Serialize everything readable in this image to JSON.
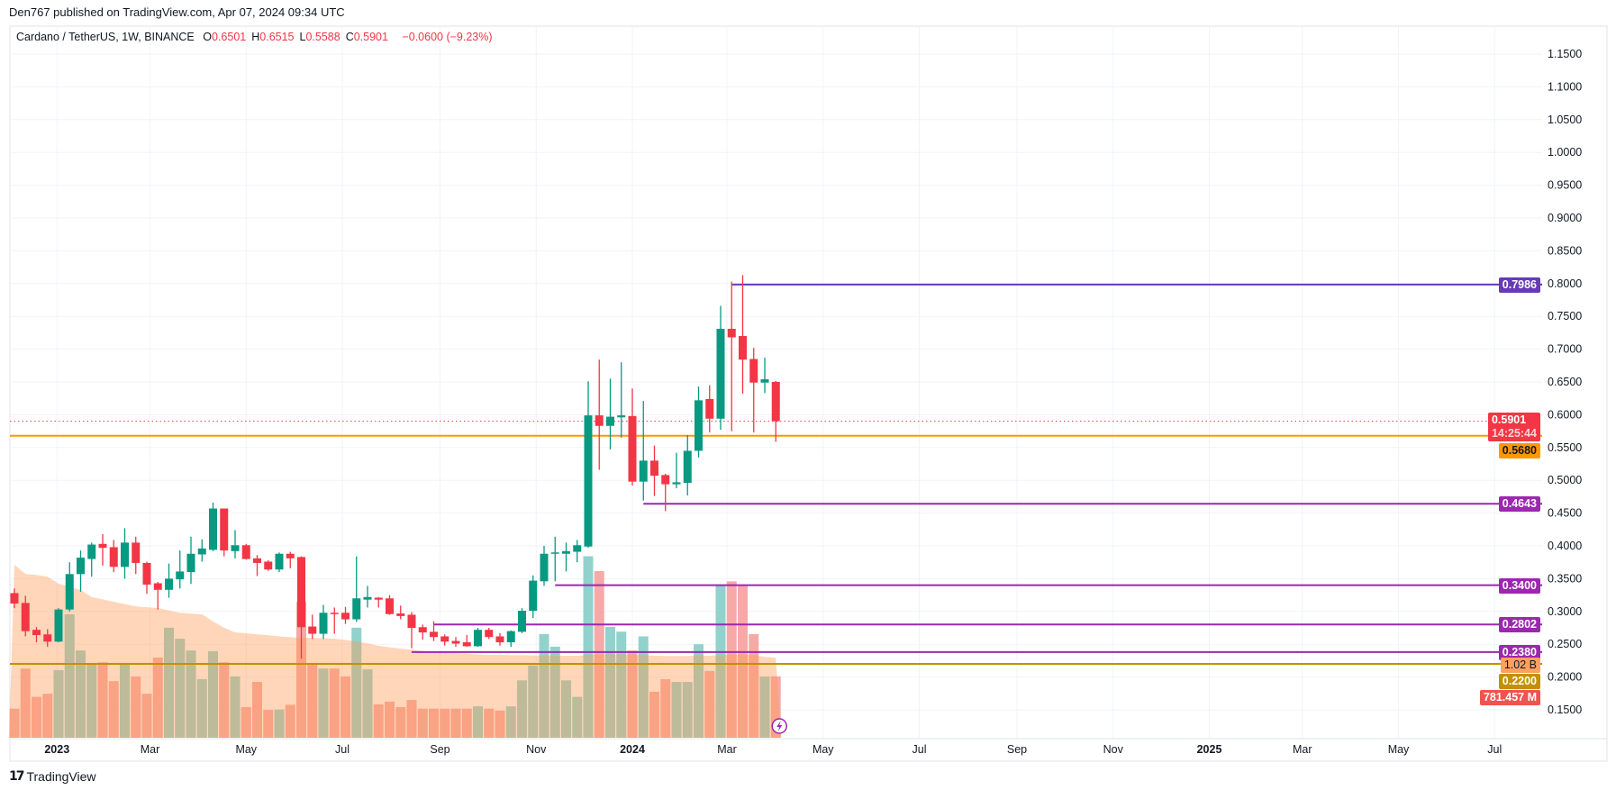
{
  "header": {
    "published": "Den767 published on TradingView.com, Apr 07, 2024 09:34 UTC",
    "symbol": "Cardano / TetherUS, 1W, BINANCE",
    "ohlc": [
      {
        "k": "O",
        "v": "0.6501"
      },
      {
        "k": "H",
        "v": "0.6515"
      },
      {
        "k": "L",
        "v": "0.5588"
      },
      {
        "k": "C",
        "v": "0.5901"
      }
    ],
    "change": "−0.0600 (−9.23%)"
  },
  "footer": {
    "logo_text": "TradingView"
  },
  "colors": {
    "up": "#089981",
    "down": "#f23645",
    "vol_up": "#92d2cc",
    "vol_down": "#f7a9a7",
    "vol_ma": "#ff9850",
    "grid": "#f0f3fa"
  },
  "chart_data": {
    "type": "candlestick",
    "interval": "1W",
    "ylim": [
      0.15,
      1.15
    ],
    "grid": true,
    "yticks": [
      "0.1500",
      "0.2000",
      "0.2500",
      "0.3000",
      "0.3500",
      "0.4000",
      "0.4500",
      "0.5000",
      "0.5500",
      "0.6000",
      "0.6500",
      "0.7000",
      "0.7500",
      "0.8000",
      "0.8500",
      "0.9000",
      "0.9500",
      "1.0000",
      "1.0500",
      "1.1000",
      "1.1500"
    ],
    "time_ticks": [
      {
        "label": "2023",
        "date": "2023-01-01",
        "bold": true
      },
      {
        "label": "Mar",
        "date": "2023-03-01"
      },
      {
        "label": "May",
        "date": "2023-05-01"
      },
      {
        "label": "Jul",
        "date": "2023-07-01"
      },
      {
        "label": "Sep",
        "date": "2023-09-01"
      },
      {
        "label": "Nov",
        "date": "2023-11-01"
      },
      {
        "label": "2024",
        "date": "2024-01-01",
        "bold": true
      },
      {
        "label": "Mar",
        "date": "2024-03-01"
      },
      {
        "label": "May",
        "date": "2024-05-01"
      },
      {
        "label": "Jul",
        "date": "2024-07-01"
      },
      {
        "label": "Sep",
        "date": "2024-09-01"
      },
      {
        "label": "Nov",
        "date": "2024-11-01"
      },
      {
        "label": "2025",
        "date": "2025-01-01",
        "bold": true
      },
      {
        "label": "Mar",
        "date": "2025-03-01"
      },
      {
        "label": "May",
        "date": "2025-05-01"
      },
      {
        "label": "Jul",
        "date": "2025-07-01"
      }
    ],
    "candle_fields": [
      "date",
      "open",
      "high",
      "low",
      "close",
      "volume_millions"
    ],
    "candles": [
      [
        "2022-12-05",
        0.328,
        0.335,
        0.305,
        0.312,
        370
      ],
      [
        "2022-12-12",
        0.313,
        0.324,
        0.262,
        0.27,
        880
      ],
      [
        "2022-12-19",
        0.272,
        0.276,
        0.253,
        0.264,
        520
      ],
      [
        "2022-12-26",
        0.265,
        0.273,
        0.246,
        0.254,
        560
      ],
      [
        "2023-01-02",
        0.254,
        0.305,
        0.253,
        0.303,
        860
      ],
      [
        "2023-01-09",
        0.303,
        0.375,
        0.3,
        0.357,
        1570
      ],
      [
        "2023-01-16",
        0.357,
        0.393,
        0.33,
        0.382,
        1110
      ],
      [
        "2023-01-23",
        0.38,
        0.405,
        0.353,
        0.402,
        930
      ],
      [
        "2023-01-30",
        0.403,
        0.418,
        0.37,
        0.397,
        960
      ],
      [
        "2023-02-06",
        0.398,
        0.409,
        0.36,
        0.368,
        720
      ],
      [
        "2023-02-13",
        0.368,
        0.427,
        0.35,
        0.405,
        950
      ],
      [
        "2023-02-20",
        0.405,
        0.414,
        0.357,
        0.374,
        780
      ],
      [
        "2023-02-27",
        0.374,
        0.376,
        0.327,
        0.341,
        560
      ],
      [
        "2023-03-06",
        0.343,
        0.345,
        0.303,
        0.333,
        1020
      ],
      [
        "2023-03-13",
        0.333,
        0.373,
        0.321,
        0.35,
        1400
      ],
      [
        "2023-03-20",
        0.349,
        0.393,
        0.335,
        0.361,
        1260
      ],
      [
        "2023-03-27",
        0.36,
        0.414,
        0.342,
        0.388,
        1110
      ],
      [
        "2023-04-03",
        0.387,
        0.41,
        0.376,
        0.396,
        745
      ],
      [
        "2023-04-10",
        0.394,
        0.466,
        0.392,
        0.457,
        1100
      ],
      [
        "2023-04-17",
        0.457,
        0.457,
        0.384,
        0.393,
        960
      ],
      [
        "2023-04-24",
        0.392,
        0.424,
        0.381,
        0.401,
        780
      ],
      [
        "2023-05-01",
        0.401,
        0.403,
        0.379,
        0.38,
        390
      ],
      [
        "2023-05-08",
        0.381,
        0.386,
        0.354,
        0.374,
        710
      ],
      [
        "2023-05-15",
        0.376,
        0.378,
        0.362,
        0.364,
        355
      ],
      [
        "2023-05-22",
        0.364,
        0.39,
        0.36,
        0.388,
        360
      ],
      [
        "2023-05-29",
        0.388,
        0.391,
        0.366,
        0.381,
        420
      ],
      [
        "2023-06-05",
        0.383,
        0.384,
        0.228,
        0.276,
        1730
      ],
      [
        "2023-06-12",
        0.277,
        0.295,
        0.258,
        0.266,
        940
      ],
      [
        "2023-06-19",
        0.266,
        0.31,
        0.258,
        0.298,
        880
      ],
      [
        "2023-06-26",
        0.298,
        0.306,
        0.266,
        0.297,
        880
      ],
      [
        "2023-07-03",
        0.298,
        0.307,
        0.281,
        0.288,
        780
      ],
      [
        "2023-07-10",
        0.288,
        0.384,
        0.284,
        0.32,
        1400
      ],
      [
        "2023-07-17",
        0.318,
        0.339,
        0.306,
        0.322,
        870
      ],
      [
        "2023-07-24",
        0.321,
        0.322,
        0.306,
        0.318,
        425
      ],
      [
        "2023-07-31",
        0.32,
        0.325,
        0.295,
        0.296,
        460
      ],
      [
        "2023-08-07",
        0.297,
        0.309,
        0.288,
        0.293,
        390
      ],
      [
        "2023-08-14",
        0.295,
        0.299,
        0.244,
        0.275,
        480
      ],
      [
        "2023-08-21",
        0.276,
        0.28,
        0.257,
        0.268,
        370
      ],
      [
        "2023-08-28",
        0.269,
        0.285,
        0.255,
        0.261,
        370
      ],
      [
        "2023-09-04",
        0.262,
        0.265,
        0.248,
        0.254,
        370
      ],
      [
        "2023-09-11",
        0.255,
        0.261,
        0.246,
        0.251,
        370
      ],
      [
        "2023-09-18",
        0.253,
        0.264,
        0.246,
        0.247,
        370
      ],
      [
        "2023-09-25",
        0.247,
        0.275,
        0.246,
        0.272,
        400
      ],
      [
        "2023-10-02",
        0.272,
        0.275,
        0.258,
        0.261,
        370
      ],
      [
        "2023-10-09",
        0.262,
        0.267,
        0.248,
        0.253,
        345
      ],
      [
        "2023-10-16",
        0.253,
        0.271,
        0.246,
        0.27,
        400
      ],
      [
        "2023-10-23",
        0.269,
        0.305,
        0.267,
        0.301,
        730
      ],
      [
        "2023-10-30",
        0.301,
        0.355,
        0.29,
        0.347,
        920
      ],
      [
        "2023-11-06",
        0.346,
        0.4,
        0.339,
        0.388,
        1320
      ],
      [
        "2023-11-13",
        0.388,
        0.414,
        0.346,
        0.39,
        1160
      ],
      [
        "2023-11-20",
        0.388,
        0.405,
        0.361,
        0.392,
        730
      ],
      [
        "2023-11-27",
        0.391,
        0.409,
        0.375,
        0.401,
        520
      ],
      [
        "2023-12-04",
        0.399,
        0.651,
        0.397,
        0.599,
        2310
      ],
      [
        "2023-12-11",
        0.599,
        0.684,
        0.516,
        0.583,
        2120
      ],
      [
        "2023-12-18",
        0.583,
        0.655,
        0.547,
        0.597,
        1410
      ],
      [
        "2023-12-25",
        0.596,
        0.68,
        0.565,
        0.599,
        1350
      ],
      [
        "2024-01-01",
        0.598,
        0.64,
        0.492,
        0.498,
        1110
      ],
      [
        "2024-01-08",
        0.498,
        0.621,
        0.469,
        0.53,
        1290
      ],
      [
        "2024-01-15",
        0.53,
        0.553,
        0.476,
        0.507,
        585
      ],
      [
        "2024-01-22",
        0.508,
        0.51,
        0.453,
        0.494,
        745
      ],
      [
        "2024-01-29",
        0.494,
        0.542,
        0.488,
        0.497,
        710
      ],
      [
        "2024-02-05",
        0.496,
        0.569,
        0.477,
        0.545,
        710
      ],
      [
        "2024-02-12",
        0.545,
        0.643,
        0.535,
        0.622,
        1190
      ],
      [
        "2024-02-19",
        0.624,
        0.645,
        0.573,
        0.594,
        850
      ],
      [
        "2024-02-26",
        0.594,
        0.766,
        0.577,
        0.731,
        1950
      ],
      [
        "2024-03-04",
        0.731,
        0.803,
        0.575,
        0.718,
        1990
      ],
      [
        "2024-03-11",
        0.72,
        0.813,
        0.632,
        0.684,
        1930
      ],
      [
        "2024-03-18",
        0.685,
        0.702,
        0.573,
        0.649,
        1320
      ],
      [
        "2024-03-25",
        0.649,
        0.687,
        0.633,
        0.654,
        780
      ],
      [
        "2024-04-01",
        0.6501,
        0.6515,
        0.5588,
        0.5901,
        781.457
      ]
    ],
    "volume_ma_millions": [
      2200,
      2085,
      2070,
      2050,
      1960,
      1920,
      1880,
      1790,
      1760,
      1730,
      1700,
      1670,
      1660,
      1650,
      1620,
      1590,
      1580,
      1570,
      1480,
      1400,
      1340,
      1330,
      1315,
      1305,
      1290,
      1280,
      1270,
      1270,
      1265,
      1260,
      1245,
      1225,
      1200,
      1170,
      1150,
      1135,
      1120,
      1100,
      1090,
      1080,
      1077,
      1070,
      1060,
      1054,
      1054,
      1050,
      1050,
      1047,
      1045,
      1043,
      1043,
      1043,
      1054,
      1060,
      1060,
      1060,
      1055,
      1050,
      1045,
      1040,
      1040,
      1040,
      1045,
      1045,
      1050,
      1060,
      1060,
      1050,
      1030,
      1020
    ],
    "levels": [
      {
        "price": 0.7986,
        "label": "0.7986",
        "color": "#673ab7",
        "from": "2024-03-04"
      },
      {
        "price": 0.568,
        "label": "0.5680",
        "color": "#ff9800",
        "text_color": "#131722"
      },
      {
        "price": 0.4643,
        "label": "0.4643",
        "color": "#9c27b0",
        "from": "2024-01-08"
      },
      {
        "price": 0.34,
        "label": "0.3400",
        "color": "#9c27b0",
        "from": "2023-11-13"
      },
      {
        "price": 0.2802,
        "label": "0.2802",
        "color": "#9c27b0",
        "from": "2023-08-28"
      },
      {
        "price": 0.238,
        "label": "0.2380",
        "color": "#9c27b0",
        "from": "2023-08-14"
      },
      {
        "price": 0.22,
        "label": "0.2200",
        "color": "#c49000"
      }
    ],
    "current_price": {
      "price": 0.5901,
      "label": "0.5901",
      "countdown": "14:25:44",
      "color": "#f23645"
    },
    "volume_ma_label": "1.02 B",
    "volume_label": "781.457 M"
  }
}
